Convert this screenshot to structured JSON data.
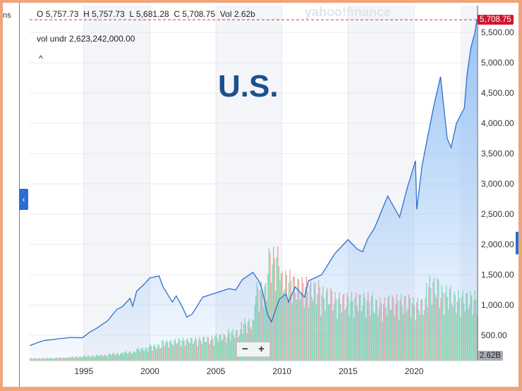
{
  "header": {
    "open": "O 5,757.73",
    "high": "H 5,757.73",
    "low": "L 5,681.28",
    "close": "C 5,708.75",
    "vol": "Vol 2.62b",
    "vol_undr": "vol undr  2,623,242,000.00",
    "collapse": "^"
  },
  "left_panel_text": "ns",
  "watermark": "yahoo!finance",
  "overlay_title": "U.S.",
  "zoom": {
    "minus": "−",
    "plus": "+"
  },
  "last_price_label": "5,708.75",
  "last_volume_label": "2.62B",
  "colors": {
    "line": "#2f6fd0",
    "fill": "#8fbef5",
    "up_volume": "#5fd39a",
    "down_volume": "#ee8a8a",
    "price_badge": "#d3142c",
    "title": "#1d4f8c"
  },
  "chart_data": {
    "type": "area",
    "y_ticks": [
      "500.00",
      "1,000.00",
      "1,500.00",
      "2,000.00",
      "2,500.00",
      "3,000.00",
      "3,500.00",
      "4,000.00",
      "4,500.00",
      "5,000.00",
      "5,500.00"
    ],
    "x_ticks": [
      "1995",
      "2000",
      "2005",
      "2010",
      "2015",
      "2020"
    ],
    "ylim": [
      0,
      5800
    ],
    "xlim": [
      1990.9,
      2024.8
    ],
    "grid": true,
    "series": [
      {
        "x": [
          1990.9,
          1991.5,
          1992,
          1993,
          1994,
          1994.9,
          1995.5,
          1996,
          1996.8,
          1997.5,
          1997.9,
          1998.5,
          1998.7,
          1999,
          1999.6,
          2000,
          2000.7,
          2001,
          2001.7,
          2002,
          2002.5,
          2002.8,
          2003.2,
          2004,
          2005,
          2006,
          2006.5,
          2007,
          2007.8,
          2008.3,
          2008.5,
          2008.9,
          2009.2,
          2009.8,
          2010.3,
          2010.5,
          2011,
          2011.7,
          2012,
          2013,
          2014,
          2015,
          2015.7,
          2016.1,
          2016.5,
          2017,
          2018,
          2018.9,
          2019.5,
          2020.1,
          2020.2,
          2020.6,
          2021,
          2021.5,
          2022,
          2022.5,
          2022.8,
          2023.2,
          2023.8,
          2024,
          2024.3,
          2024.6,
          2024.75
        ],
        "y": [
          330,
          380,
          415,
          440,
          465,
          460,
          560,
          620,
          740,
          930,
          970,
          1110,
          980,
          1230,
          1350,
          1450,
          1480,
          1300,
          1050,
          1150,
          950,
          800,
          850,
          1130,
          1200,
          1270,
          1250,
          1420,
          1540,
          1380,
          1250,
          850,
          720,
          1100,
          1180,
          1050,
          1300,
          1130,
          1400,
          1500,
          1850,
          2080,
          1920,
          1880,
          2100,
          2270,
          2800,
          2450,
          2950,
          3380,
          2580,
          3300,
          3750,
          4300,
          4770,
          3750,
          3600,
          4000,
          4250,
          4800,
          5250,
          5500,
          5708.75
        ]
      }
    ],
    "volume_b": [
      0.15,
      0.17,
      0.2,
      0.25,
      0.3,
      0.35,
      0.45,
      0.55,
      0.75,
      0.95,
      1.2,
      1.3,
      1.35,
      1.4,
      1.55,
      1.8,
      2.4,
      4.5,
      6.5,
      5.2,
      4.8,
      4.6,
      4.2,
      3.9,
      3.9,
      3.9,
      3.6,
      3.8,
      3.8,
      3.6,
      4.8,
      4.3,
      4.0,
      4.0,
      4.1
    ]
  }
}
